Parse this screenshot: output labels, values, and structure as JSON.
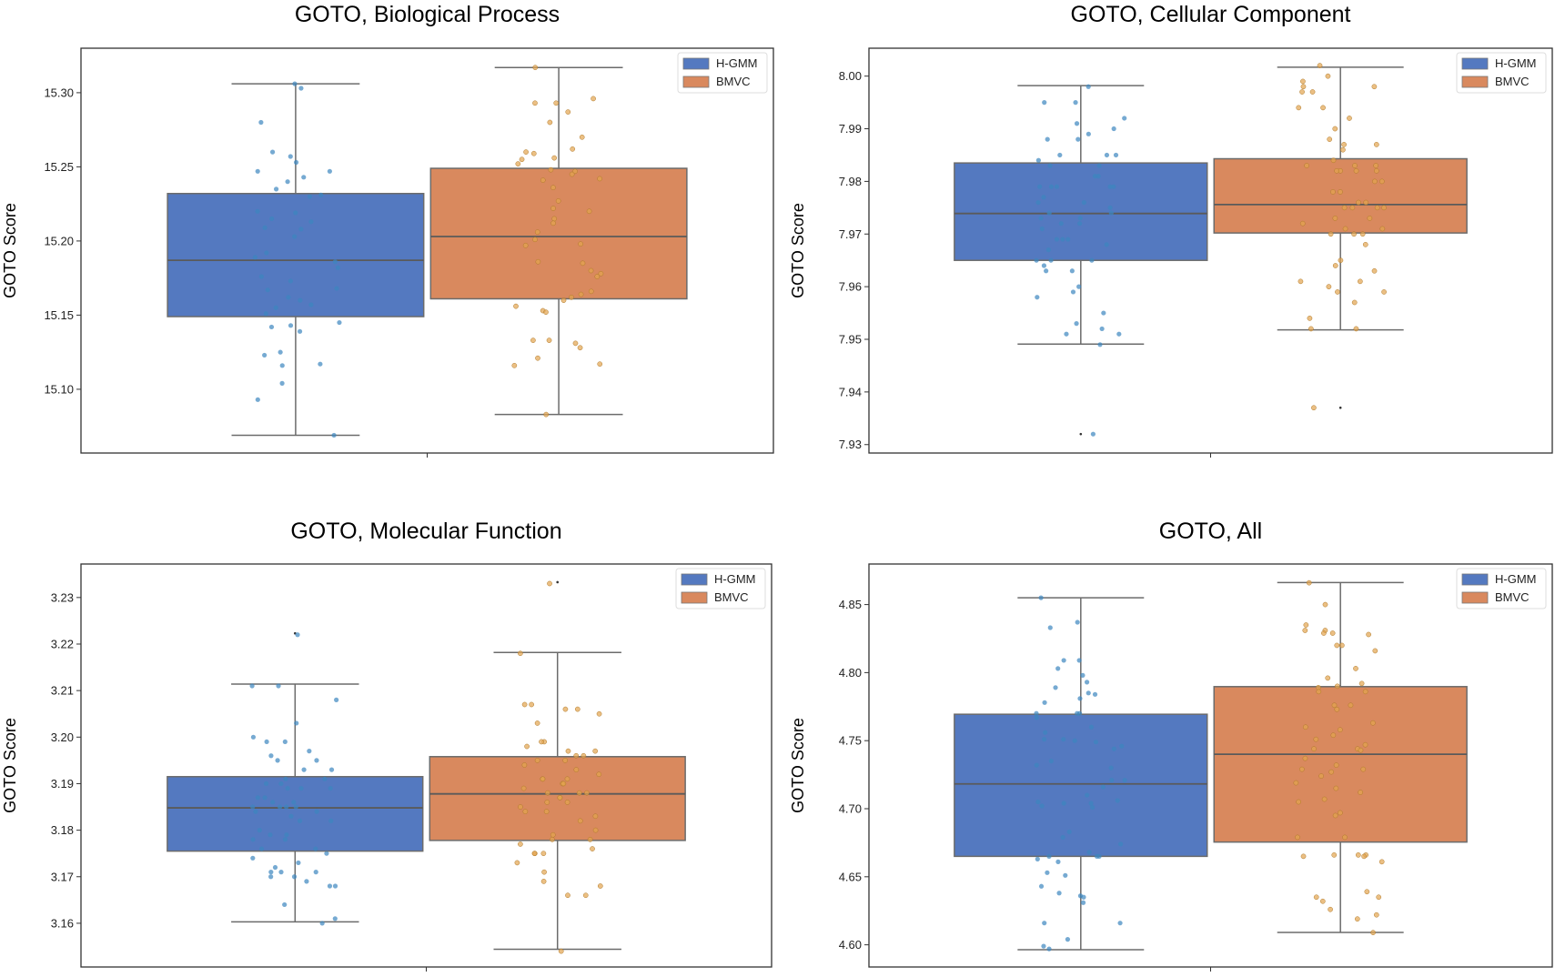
{
  "colors": {
    "H-GMM": "#5479c0",
    "BMVC": "#d9895e",
    "H-GMM_points": "#3c86bf",
    "BMVC_points": "#e3a44e"
  },
  "chart_data": [
    {
      "type": "box",
      "title": "GOTO, Biological Process",
      "ylabel": "GOTO Score",
      "xlabel": "",
      "ylim": [
        15.057,
        15.33
      ],
      "yticks": [
        "15.10",
        "15.15",
        "15.20",
        "15.25",
        "15.30"
      ],
      "legend": {
        "position": "top-right",
        "entries": [
          "H-GMM",
          "BMVC"
        ]
      },
      "grid": false,
      "series": [
        {
          "name": "H-GMM",
          "q1": 15.149,
          "median": 15.187,
          "q3": 15.232,
          "whisker_low": 15.069,
          "whisker_high": 15.306,
          "outliers": [],
          "points": [
            15.306,
            15.303,
            15.28,
            15.26,
            15.257,
            15.253,
            15.247,
            15.247,
            15.243,
            15.24,
            15.235,
            15.231,
            15.23,
            15.22,
            15.219,
            15.215,
            15.213,
            15.209,
            15.208,
            15.203,
            15.192,
            15.189,
            15.186,
            15.182,
            15.176,
            15.173,
            15.168,
            15.167,
            15.162,
            15.16,
            15.157,
            15.155,
            15.151,
            15.145,
            15.143,
            15.142,
            15.139,
            15.125,
            15.123,
            15.117,
            15.116,
            15.104,
            15.093,
            15.069
          ]
        },
        {
          "name": "BMVC",
          "q1": 15.161,
          "median": 15.203,
          "q3": 15.249,
          "whisker_low": 15.083,
          "whisker_high": 15.317,
          "outliers": [],
          "points": [
            15.317,
            15.296,
            15.293,
            15.293,
            15.287,
            15.28,
            15.27,
            15.262,
            15.26,
            15.259,
            15.256,
            15.255,
            15.252,
            15.248,
            15.247,
            15.245,
            15.242,
            15.241,
            15.236,
            15.227,
            15.222,
            15.22,
            15.215,
            15.212,
            15.206,
            15.201,
            15.198,
            15.197,
            15.186,
            15.185,
            15.18,
            15.178,
            15.176,
            15.166,
            15.164,
            15.162,
            15.16,
            15.156,
            15.153,
            15.152,
            15.133,
            15.133,
            15.131,
            15.128,
            15.121,
            15.117,
            15.116,
            15.083
          ]
        }
      ]
    },
    {
      "type": "box",
      "title": "GOTO, Cellular Component",
      "ylabel": "GOTO Score",
      "xlabel": "",
      "ylim": [
        7.9284,
        8.0053
      ],
      "yticks": [
        "7.93",
        "7.94",
        "7.95",
        "7.96",
        "7.97",
        "7.98",
        "7.99",
        "8.00"
      ],
      "legend": {
        "position": "top-right",
        "entries": [
          "H-GMM",
          "BMVC"
        ]
      },
      "grid": false,
      "series": [
        {
          "name": "H-GMM",
          "q1": 7.965,
          "median": 7.9739,
          "q3": 7.9835,
          "whisker_low": 7.9491,
          "whisker_high": 7.9982,
          "outliers": [
            7.932
          ],
          "points": [
            7.998,
            7.995,
            7.995,
            7.992,
            7.991,
            7.99,
            7.989,
            7.988,
            7.988,
            7.985,
            7.985,
            7.985,
            7.984,
            7.983,
            7.983,
            7.981,
            7.981,
            7.979,
            7.979,
            7.979,
            7.979,
            7.979,
            7.977,
            7.976,
            7.976,
            7.975,
            7.974,
            7.974,
            7.973,
            7.973,
            7.972,
            7.972,
            7.971,
            7.969,
            7.969,
            7.969,
            7.968,
            7.967,
            7.965,
            7.965,
            7.965,
            7.964,
            7.963,
            7.963,
            7.96,
            7.959,
            7.958,
            7.955,
            7.953,
            7.952,
            7.951,
            7.951,
            7.949,
            7.932
          ]
        },
        {
          "name": "BMVC",
          "q1": 7.9702,
          "median": 7.9756,
          "q3": 7.9843,
          "whisker_low": 7.9518,
          "whisker_high": 8.0017,
          "outliers": [
            7.937
          ],
          "points": [
            8.002,
            8.0,
            7.999,
            7.998,
            7.998,
            7.997,
            7.997,
            7.994,
            7.994,
            7.992,
            7.99,
            7.988,
            7.987,
            7.987,
            7.986,
            7.984,
            7.983,
            7.983,
            7.983,
            7.982,
            7.982,
            7.982,
            7.982,
            7.98,
            7.98,
            7.978,
            7.978,
            7.976,
            7.976,
            7.975,
            7.975,
            7.975,
            7.975,
            7.973,
            7.973,
            7.972,
            7.971,
            7.971,
            7.97,
            7.97,
            7.97,
            7.968,
            7.965,
            7.964,
            7.963,
            7.961,
            7.961,
            7.96,
            7.959,
            7.959,
            7.957,
            7.954,
            7.952,
            7.952,
            7.937
          ]
        }
      ]
    },
    {
      "type": "box",
      "title": "GOTO, Molecular Function",
      "ylabel": "GOTO Score",
      "xlabel": "",
      "ylim": [
        3.1506,
        3.2372
      ],
      "yticks": [
        "3.16",
        "3.17",
        "3.18",
        "3.19",
        "3.20",
        "3.21",
        "3.22",
        "3.23"
      ],
      "legend": {
        "position": "top-right",
        "entries": [
          "H-GMM",
          "BMVC"
        ]
      },
      "grid": false,
      "series": [
        {
          "name": "H-GMM",
          "q1": 3.1755,
          "median": 3.1848,
          "q3": 3.1915,
          "whisker_low": 3.1603,
          "whisker_high": 3.2114,
          "outliers": [
            3.2223
          ],
          "points": [
            3.222,
            3.211,
            3.211,
            3.208,
            3.203,
            3.2,
            3.199,
            3.199,
            3.197,
            3.196,
            3.195,
            3.195,
            3.193,
            3.193,
            3.191,
            3.191,
            3.19,
            3.19,
            3.189,
            3.189,
            3.189,
            3.187,
            3.187,
            3.186,
            3.186,
            3.185,
            3.185,
            3.185,
            3.185,
            3.184,
            3.184,
            3.183,
            3.182,
            3.182,
            3.18,
            3.179,
            3.179,
            3.178,
            3.178,
            3.176,
            3.176,
            3.175,
            3.174,
            3.173,
            3.172,
            3.171,
            3.171,
            3.171,
            3.17,
            3.17,
            3.169,
            3.168,
            3.168,
            3.164,
            3.161,
            3.16
          ]
        },
        {
          "name": "BMVC",
          "q1": 3.1778,
          "median": 3.1878,
          "q3": 3.1958,
          "whisker_low": 3.1544,
          "whisker_high": 3.2182,
          "outliers": [
            3.2333
          ],
          "points": [
            3.233,
            3.218,
            3.207,
            3.207,
            3.206,
            3.206,
            3.205,
            3.203,
            3.199,
            3.199,
            3.198,
            3.197,
            3.197,
            3.196,
            3.196,
            3.195,
            3.195,
            3.194,
            3.193,
            3.192,
            3.191,
            3.191,
            3.191,
            3.19,
            3.19,
            3.189,
            3.188,
            3.188,
            3.188,
            3.187,
            3.187,
            3.186,
            3.186,
            3.185,
            3.184,
            3.184,
            3.183,
            3.182,
            3.18,
            3.179,
            3.178,
            3.178,
            3.177,
            3.176,
            3.175,
            3.175,
            3.175,
            3.173,
            3.171,
            3.169,
            3.168,
            3.166,
            3.166,
            3.154
          ]
        }
      ]
    },
    {
      "type": "box",
      "title": "GOTO, All",
      "ylabel": "GOTO Score",
      "xlabel": "",
      "ylim": [
        4.5837,
        4.8798
      ],
      "yticks": [
        "4.60",
        "4.65",
        "4.70",
        "4.75",
        "4.80",
        "4.85"
      ],
      "legend": {
        "position": "top-right",
        "entries": [
          "H-GMM",
          "BMVC"
        ]
      },
      "grid": false,
      "series": [
        {
          "name": "H-GMM",
          "q1": 4.665,
          "median": 4.7182,
          "q3": 4.7694,
          "whisker_low": 4.5964,
          "whisker_high": 4.855,
          "outliers": [],
          "points": [
            4.855,
            4.837,
            4.833,
            4.809,
            4.809,
            4.803,
            4.798,
            4.793,
            4.789,
            4.785,
            4.784,
            4.781,
            4.778,
            4.77,
            4.77,
            4.77,
            4.767,
            4.76,
            4.756,
            4.751,
            4.751,
            4.75,
            4.749,
            4.746,
            4.744,
            4.735,
            4.732,
            4.73,
            4.721,
            4.721,
            4.716,
            4.71,
            4.706,
            4.705,
            4.704,
            4.704,
            4.702,
            4.701,
            4.683,
            4.679,
            4.674,
            4.668,
            4.665,
            4.665,
            4.665,
            4.663,
            4.661,
            4.653,
            4.651,
            4.643,
            4.638,
            4.636,
            4.635,
            4.631,
            4.616,
            4.616,
            4.604,
            4.599,
            4.597
          ]
        },
        {
          "name": "BMVC",
          "q1": 4.6755,
          "median": 4.74,
          "q3": 4.7897,
          "whisker_low": 4.6091,
          "whisker_high": 4.8662,
          "outliers": [],
          "points": [
            4.866,
            4.85,
            4.835,
            4.831,
            4.831,
            4.829,
            4.829,
            4.828,
            4.82,
            4.82,
            4.816,
            4.803,
            4.796,
            4.792,
            4.79,
            4.789,
            4.786,
            4.786,
            4.776,
            4.776,
            4.773,
            4.763,
            4.76,
            4.758,
            4.754,
            4.751,
            4.747,
            4.744,
            4.744,
            4.743,
            4.737,
            4.732,
            4.729,
            4.729,
            4.727,
            4.724,
            4.719,
            4.715,
            4.712,
            4.707,
            4.705,
            4.697,
            4.695,
            4.679,
            4.679,
            4.666,
            4.666,
            4.666,
            4.665,
            4.665,
            4.661,
            4.639,
            4.635,
            4.635,
            4.632,
            4.626,
            4.622,
            4.619,
            4.609
          ]
        }
      ]
    }
  ]
}
